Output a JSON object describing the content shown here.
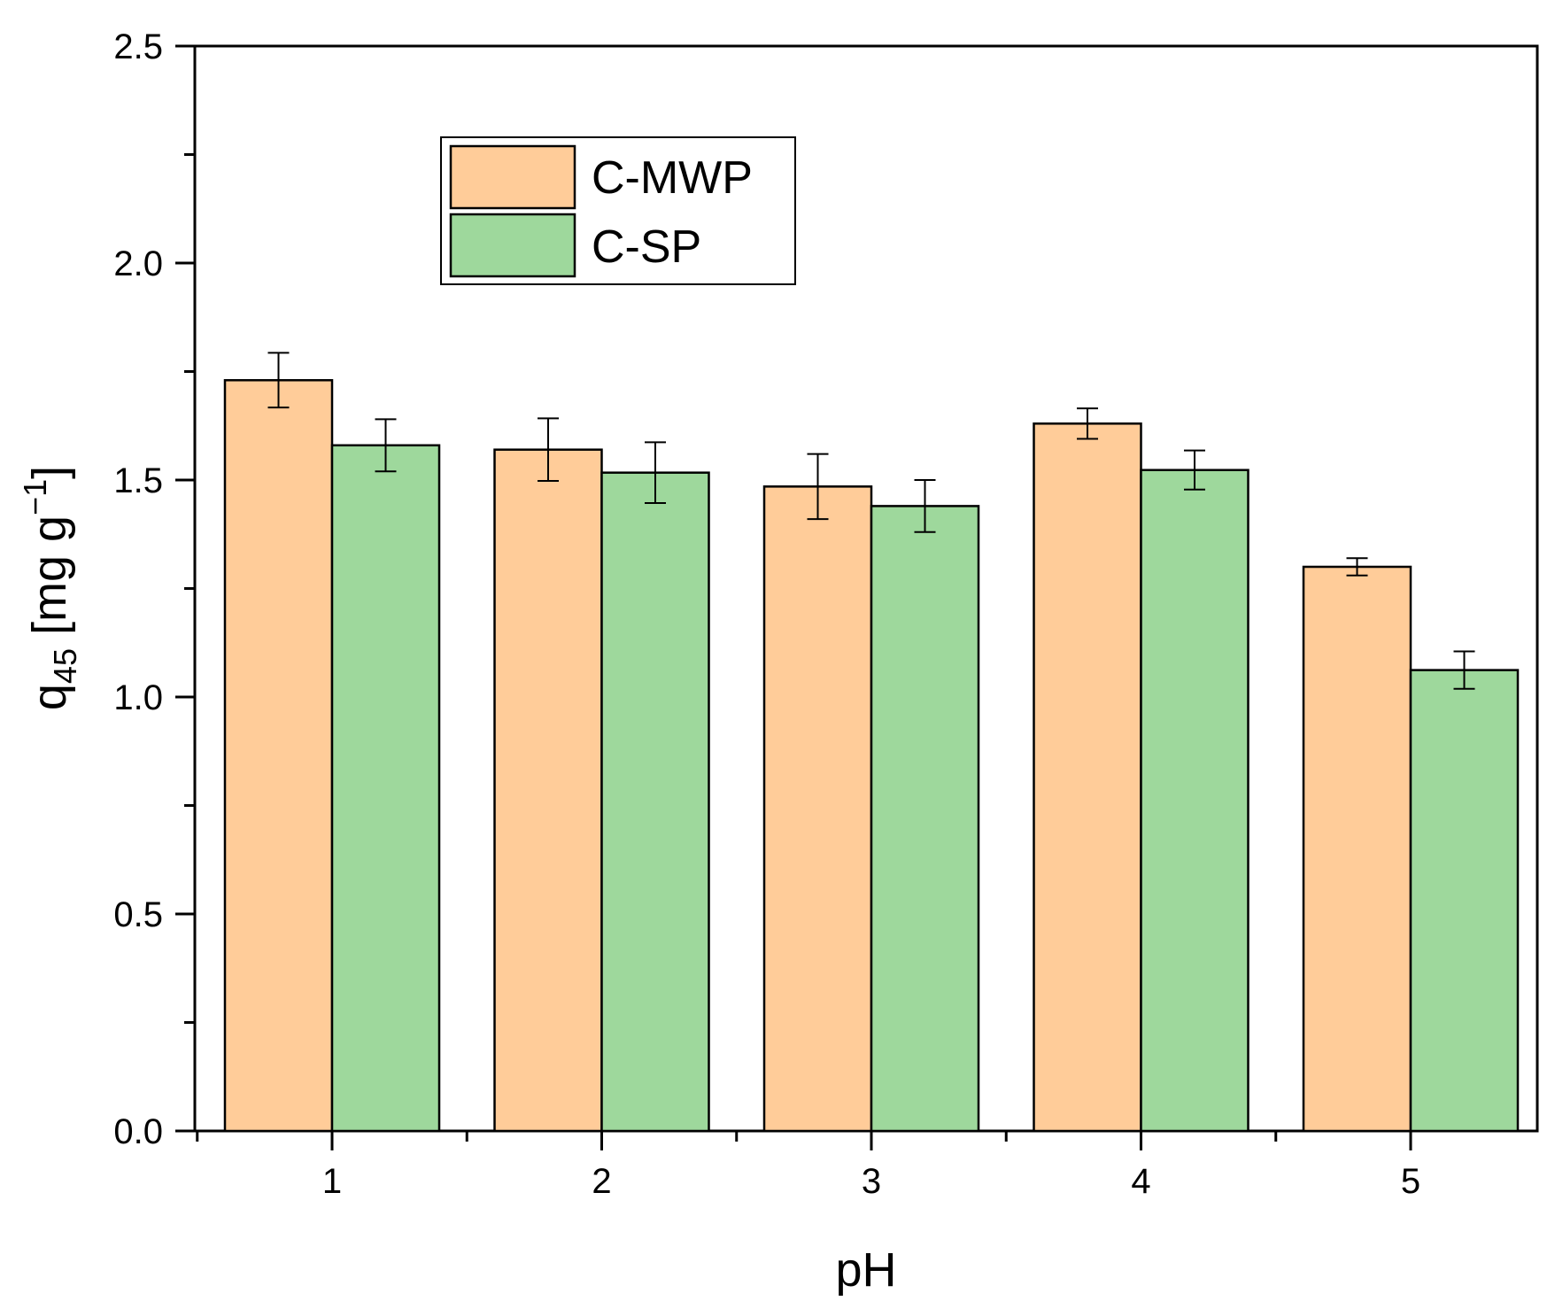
{
  "chart_data": {
    "type": "bar",
    "title": "",
    "xlabel": "pH",
    "ylabel": {
      "main": "q",
      "subscript": "45",
      "unit_open": " [mg g",
      "superscript": "−1",
      "unit_close": "]"
    },
    "categories": [
      "1",
      "2",
      "3",
      "4",
      "5"
    ],
    "ylim": [
      0,
      2.5
    ],
    "yticks": [
      "0.0",
      "0.5",
      "1.0",
      "1.5",
      "2.0",
      "2.5"
    ],
    "legend_position": "top-left",
    "series": [
      {
        "name": "C-MWP",
        "color": "#FFCC99",
        "values": [
          1.73,
          1.57,
          1.485,
          1.63,
          1.3
        ],
        "errors": [
          0.063,
          0.072,
          0.075,
          0.035,
          0.02
        ]
      },
      {
        "name": "C-SP",
        "color": "#9ED89C",
        "values": [
          1.58,
          1.517,
          1.44,
          1.523,
          1.062
        ],
        "errors": [
          0.06,
          0.07,
          0.06,
          0.045,
          0.043
        ]
      }
    ]
  }
}
